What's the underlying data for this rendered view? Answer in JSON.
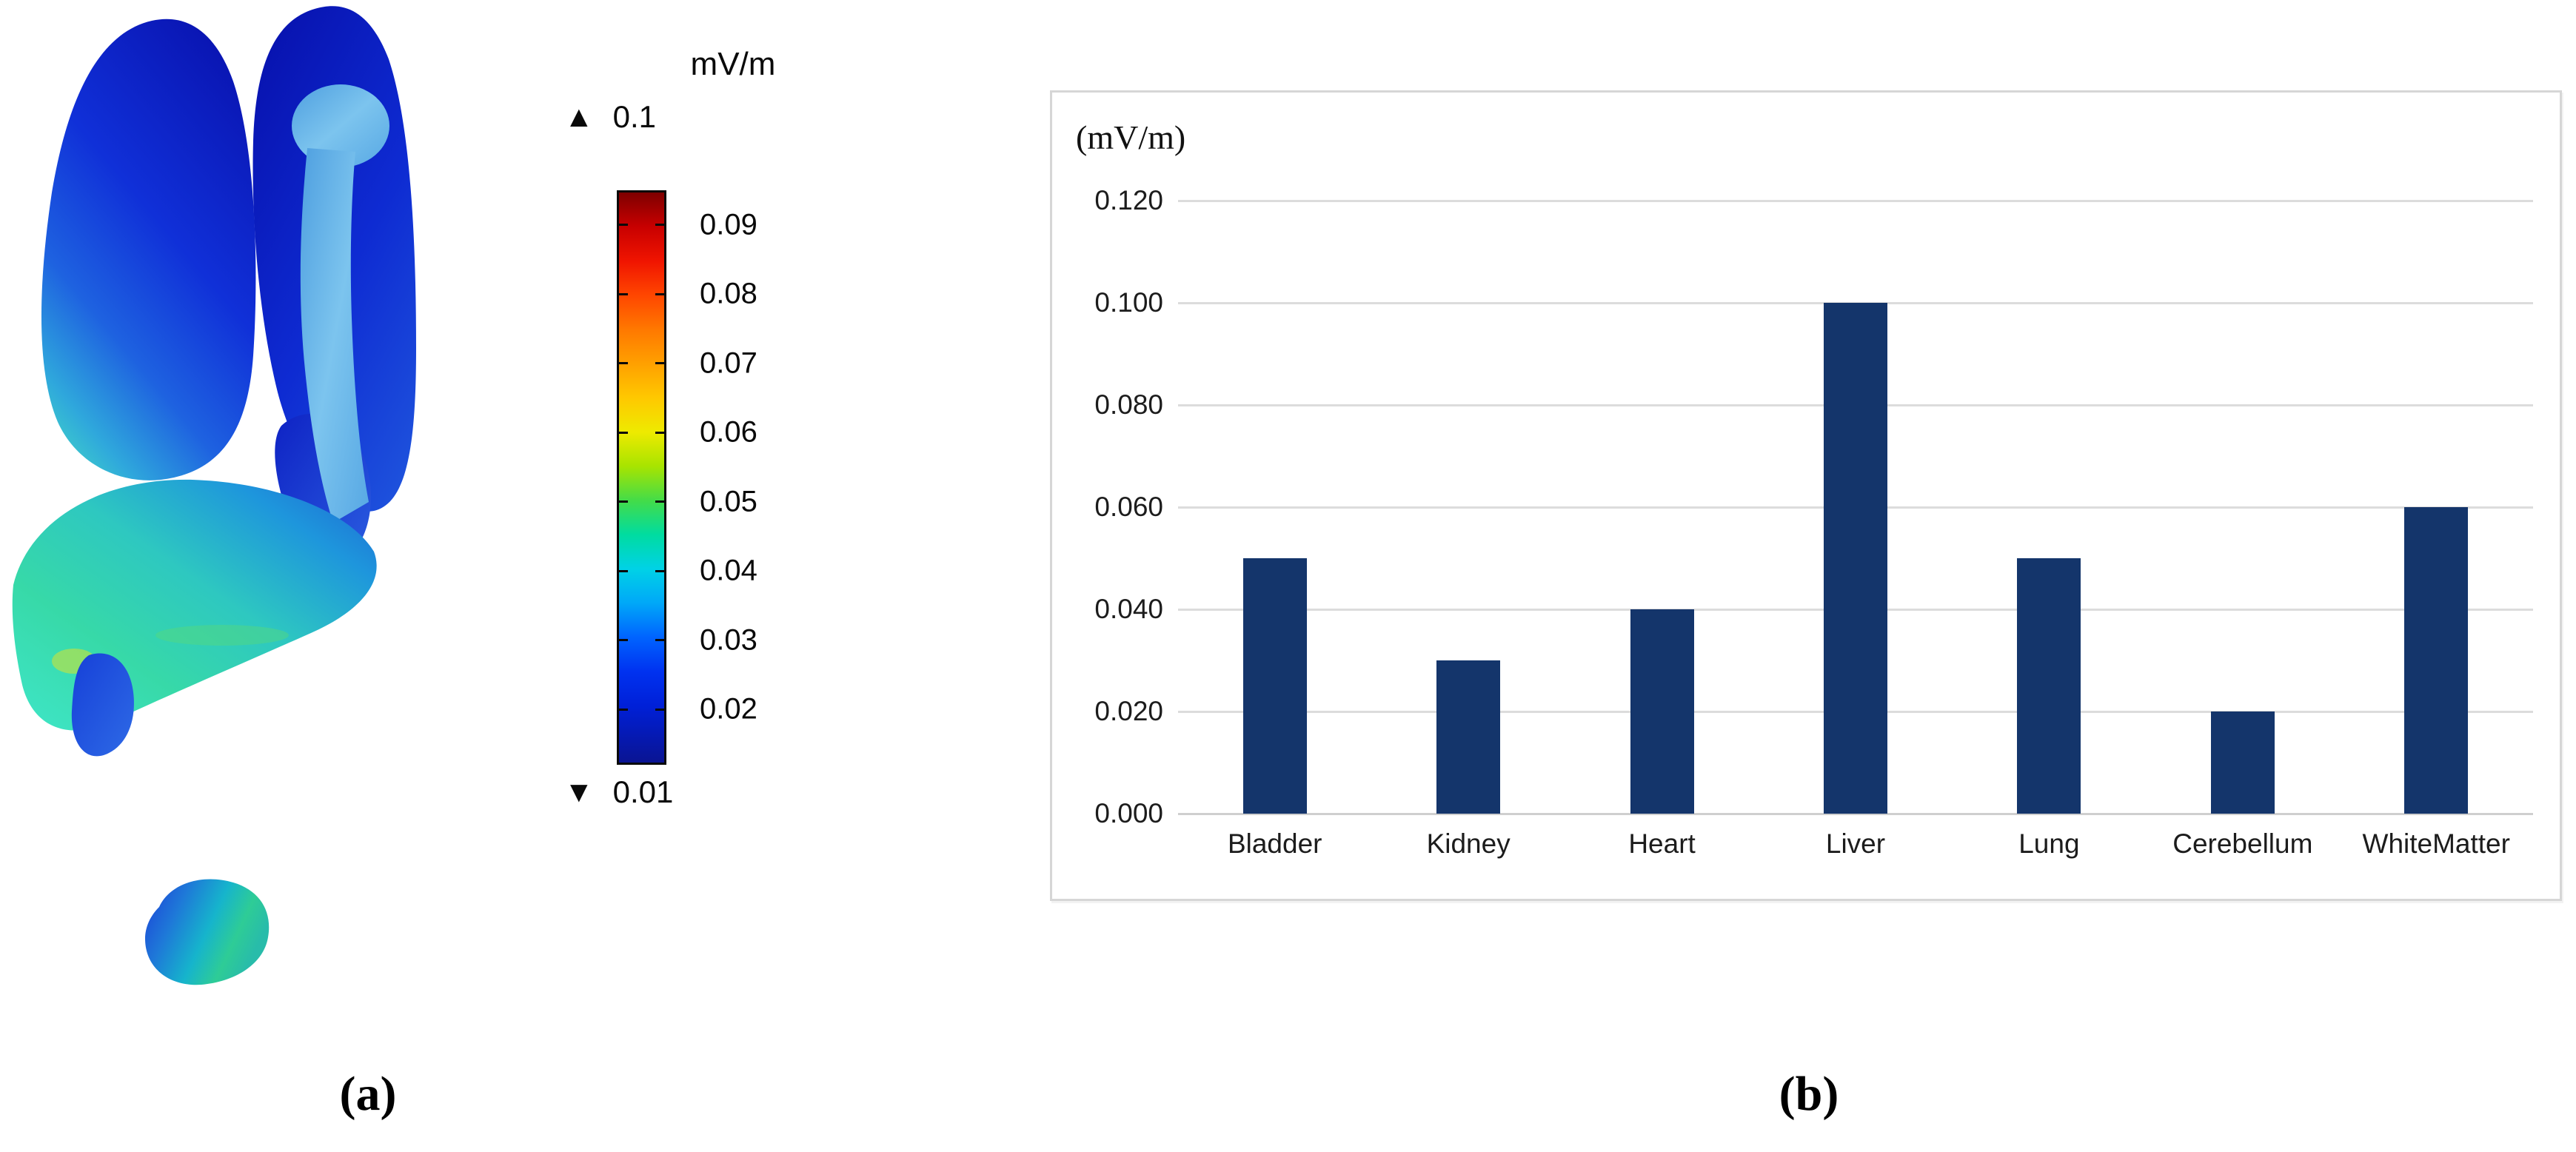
{
  "panel_a": {
    "label": "(a)",
    "colorbar": {
      "title": "mV/m",
      "max_label": "0.1",
      "min_label": "0.01",
      "top_value": 0.095,
      "bottom_value": 0.012,
      "tick_labels": [
        "0.09",
        "0.08",
        "0.07",
        "0.06",
        "0.05",
        "0.04",
        "0.03",
        "0.02"
      ],
      "gradient_stops": [
        [
          "0%",
          "#7e0000"
        ],
        [
          "6%",
          "#c80000"
        ],
        [
          "12%",
          "#f01400"
        ],
        [
          "18%",
          "#ff4600"
        ],
        [
          "24%",
          "#ff7800"
        ],
        [
          "30%",
          "#ffa000"
        ],
        [
          "36%",
          "#ffc800"
        ],
        [
          "42%",
          "#eeea00"
        ],
        [
          "48%",
          "#a8e400"
        ],
        [
          "54%",
          "#44dc48"
        ],
        [
          "60%",
          "#00dca0"
        ],
        [
          "66%",
          "#00d2e6"
        ],
        [
          "72%",
          "#00a8f8"
        ],
        [
          "78%",
          "#0064ff"
        ],
        [
          "84%",
          "#0032f0"
        ],
        [
          "90%",
          "#0020d8"
        ],
        [
          "100%",
          "#0a1492"
        ]
      ]
    }
  },
  "panel_b": {
    "label": "(b)"
  },
  "chart_data": {
    "type": "bar",
    "title": "(mV/m)",
    "categories": [
      "Bladder",
      "Kidney",
      "Heart",
      "Liver",
      "Lung",
      "Cerebellum",
      "WhiteMatter"
    ],
    "values": [
      0.05,
      0.03,
      0.04,
      0.1,
      0.05,
      0.02,
      0.06
    ],
    "unit": "mV/m",
    "xlabel": "",
    "ylabel": "(mV/m)",
    "ylim": [
      0,
      0.12
    ],
    "ytick_step": 0.02,
    "ytick_labels": [
      "0.120",
      "0.100",
      "0.080",
      "0.060",
      "0.040",
      "0.020",
      "0.000"
    ],
    "bar_color": "#14356b",
    "grid": true,
    "legend": "none"
  }
}
